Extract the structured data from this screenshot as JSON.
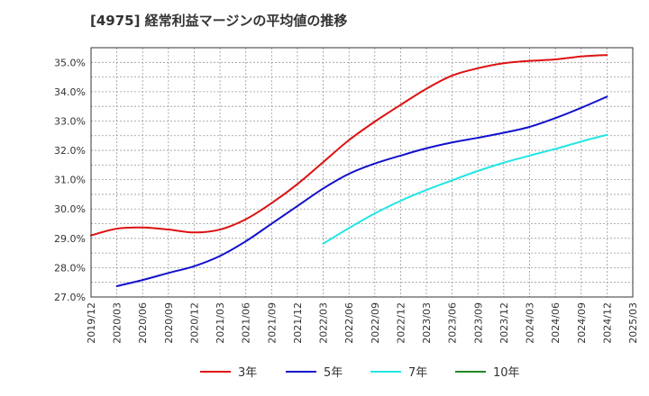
{
  "chart_data": {
    "type": "line",
    "title": "[4975]  経常利益マージンの平均値の推移",
    "xlabel": "",
    "ylabel": "",
    "x_ticks": [
      "2019/12",
      "2020/03",
      "2020/06",
      "2020/09",
      "2020/12",
      "2021/03",
      "2021/06",
      "2021/09",
      "2021/12",
      "2022/03",
      "2022/06",
      "2022/09",
      "2022/12",
      "2023/03",
      "2023/06",
      "2023/09",
      "2023/12",
      "2024/03",
      "2024/06",
      "2024/09",
      "2024/12",
      "2025/03"
    ],
    "y_ticks": [
      "27.0%",
      "28.0%",
      "29.0%",
      "30.0%",
      "31.0%",
      "32.0%",
      "33.0%",
      "34.0%",
      "35.0%"
    ],
    "ylim": [
      27.0,
      35.5
    ],
    "grid": true,
    "legend_position": "bottom",
    "series": [
      {
        "name": "3年",
        "color": "#dd1111",
        "x": [
          "2019/12",
          "2020/03",
          "2020/06",
          "2020/09",
          "2020/12",
          "2021/03",
          "2021/06",
          "2021/09",
          "2021/12",
          "2022/03",
          "2022/06",
          "2022/09",
          "2022/12",
          "2023/03",
          "2023/06",
          "2023/09",
          "2023/12",
          "2024/03",
          "2024/06",
          "2024/09",
          "2024/12"
        ],
        "values": [
          29.1,
          29.33,
          29.37,
          29.3,
          29.2,
          29.3,
          29.65,
          30.2,
          30.85,
          31.6,
          32.35,
          32.98,
          33.55,
          34.1,
          34.55,
          34.8,
          34.97,
          35.05,
          35.1,
          35.2,
          35.25
        ]
      },
      {
        "name": "5年",
        "color": "#1111cc",
        "x": [
          "2020/03",
          "2020/06",
          "2020/09",
          "2020/12",
          "2021/03",
          "2021/06",
          "2021/09",
          "2021/12",
          "2022/03",
          "2022/06",
          "2022/09",
          "2022/12",
          "2023/03",
          "2023/06",
          "2023/09",
          "2023/12",
          "2024/03",
          "2024/06",
          "2024/09",
          "2024/12"
        ],
        "values": [
          27.37,
          27.58,
          27.82,
          28.05,
          28.4,
          28.9,
          29.5,
          30.1,
          30.7,
          31.2,
          31.55,
          31.82,
          32.07,
          32.27,
          32.43,
          32.6,
          32.8,
          33.1,
          33.45,
          33.83
        ]
      },
      {
        "name": "7年",
        "color": "#22e5e5",
        "x": [
          "2022/03",
          "2022/06",
          "2022/09",
          "2022/12",
          "2023/03",
          "2023/06",
          "2023/09",
          "2023/12",
          "2024/03",
          "2024/06",
          "2024/09",
          "2024/12"
        ],
        "values": [
          28.82,
          29.35,
          29.85,
          30.28,
          30.65,
          30.98,
          31.3,
          31.58,
          31.82,
          32.05,
          32.3,
          32.53
        ]
      },
      {
        "name": "10年",
        "color": "#228822",
        "x": [],
        "values": []
      }
    ]
  }
}
